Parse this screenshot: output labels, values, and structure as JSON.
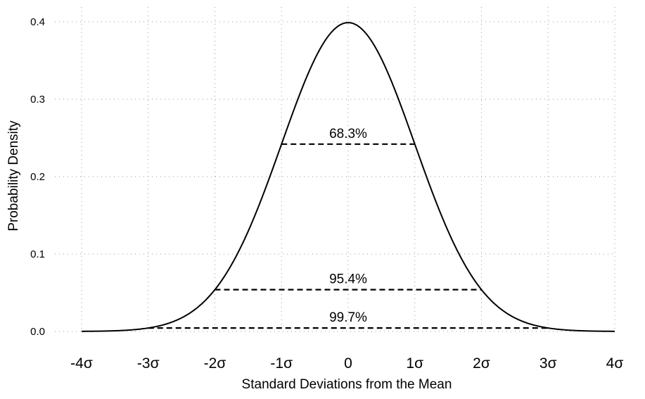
{
  "chart_data": {
    "type": "line",
    "xlabel": "Standard Deviations from the Mean",
    "ylabel": "Probability Density",
    "xlim": [
      -4,
      4
    ],
    "ylim": [
      0,
      0.4
    ],
    "x_ticks": [
      {
        "value": -4,
        "label": "-4σ"
      },
      {
        "value": -3,
        "label": "-3σ"
      },
      {
        "value": -2,
        "label": "-2σ"
      },
      {
        "value": -1,
        "label": "-1σ"
      },
      {
        "value": 0,
        "label": "0"
      },
      {
        "value": 1,
        "label": "1σ"
      },
      {
        "value": 2,
        "label": "2σ"
      },
      {
        "value": 3,
        "label": "3σ"
      },
      {
        "value": 4,
        "label": "4σ"
      }
    ],
    "y_ticks": [
      {
        "value": 0.0,
        "label": "0.0"
      },
      {
        "value": 0.1,
        "label": "0.1"
      },
      {
        "value": 0.2,
        "label": "0.2"
      },
      {
        "value": 0.3,
        "label": "0.3"
      },
      {
        "value": 0.4,
        "label": "0.4"
      }
    ],
    "series": [
      {
        "x": [
          -4,
          -3.5,
          -3,
          -2.5,
          -2,
          -1.5,
          -1,
          -0.5,
          0,
          0.5,
          1,
          1.5,
          2,
          2.5,
          3,
          3.5,
          4
        ],
        "y": [
          0.0001,
          0.0009,
          0.0044,
          0.0175,
          0.054,
          0.1295,
          0.242,
          0.3521,
          0.3989,
          0.3521,
          0.242,
          0.1295,
          0.054,
          0.0175,
          0.0044,
          0.0009,
          0.0001
        ],
        "color": "#000000"
      }
    ],
    "bands": [
      {
        "label": "68.3%",
        "x": [
          -1,
          1
        ],
        "y": 0.242
      },
      {
        "label": "95.4%",
        "x": [
          -2,
          2
        ],
        "y": 0.054
      },
      {
        "label": "99.7%",
        "x": [
          -3,
          3
        ],
        "y": 0.0044
      }
    ],
    "grid": true
  }
}
